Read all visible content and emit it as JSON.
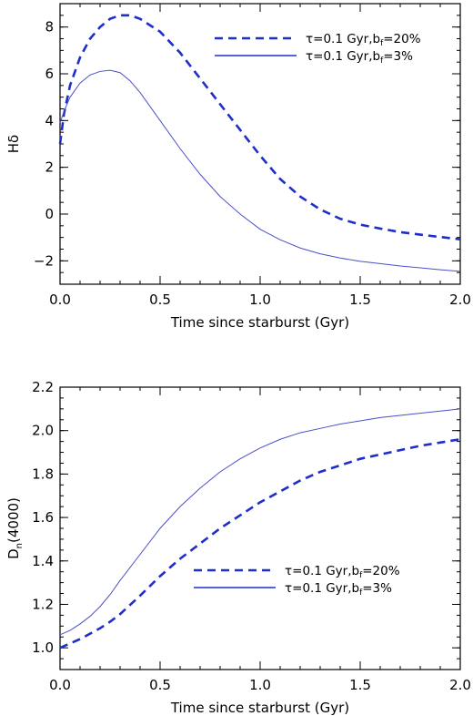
{
  "chart_data": [
    {
      "type": "line",
      "xlabel": "Time since starburst (Gyr)",
      "ylabel": "Hδ",
      "xlim": [
        0.0,
        2.0
      ],
      "ylim": [
        -3.0,
        9.0
      ],
      "xticks": [
        "0.0",
        "0.5",
        "1.0",
        "1.5",
        "2.0"
      ],
      "yticks": [
        "−2",
        "0",
        "2",
        "4",
        "6",
        "8"
      ],
      "ytick_values": [
        -2,
        0,
        2,
        4,
        6,
        8
      ],
      "xtick_values": [
        0.0,
        0.5,
        1.0,
        1.5,
        2.0
      ],
      "legend_position": "top-right",
      "series": [
        {
          "name": "τ=0.1 Gyr,bf=20%",
          "name_parts": [
            "τ=0.1 Gyr,b",
            "f",
            "=20%"
          ],
          "style": "dashed",
          "color": "#1f2ec8",
          "x": [
            0.0,
            0.02,
            0.05,
            0.1,
            0.15,
            0.2,
            0.25,
            0.3,
            0.35,
            0.4,
            0.5,
            0.6,
            0.7,
            0.8,
            0.9,
            1.0,
            1.1,
            1.2,
            1.3,
            1.4,
            1.5,
            1.6,
            1.7,
            1.8,
            1.9,
            2.0
          ],
          "y": [
            3.0,
            4.3,
            5.5,
            6.7,
            7.5,
            8.0,
            8.35,
            8.5,
            8.5,
            8.35,
            7.8,
            6.9,
            5.8,
            4.7,
            3.6,
            2.5,
            1.5,
            0.75,
            0.2,
            -0.2,
            -0.45,
            -0.62,
            -0.77,
            -0.88,
            -0.98,
            -1.08
          ]
        },
        {
          "name": "τ=0.1 Gyr,bf=3%",
          "name_parts": [
            "τ=0.1 Gyr,b",
            "f",
            "=3%"
          ],
          "style": "solid",
          "color": "#1f2ec8",
          "x": [
            0.0,
            0.02,
            0.05,
            0.1,
            0.15,
            0.2,
            0.25,
            0.3,
            0.35,
            0.4,
            0.5,
            0.6,
            0.7,
            0.8,
            0.9,
            1.0,
            1.1,
            1.2,
            1.3,
            1.4,
            1.5,
            1.6,
            1.7,
            1.8,
            1.9,
            2.0
          ],
          "y": [
            3.9,
            4.4,
            5.0,
            5.6,
            5.95,
            6.1,
            6.15,
            6.05,
            5.7,
            5.2,
            4.0,
            2.8,
            1.7,
            0.75,
            0.0,
            -0.65,
            -1.1,
            -1.45,
            -1.7,
            -1.88,
            -2.02,
            -2.12,
            -2.22,
            -2.3,
            -2.38,
            -2.45
          ]
        }
      ]
    },
    {
      "type": "line",
      "xlabel": "Time since starburst (Gyr)",
      "ylabel": "Dn(4000)",
      "ylabel_parts": [
        "D",
        "n",
        "(4000)"
      ],
      "xlim": [
        0.0,
        2.0
      ],
      "ylim": [
        0.9,
        2.2
      ],
      "xticks": [
        "0.0",
        "0.5",
        "1.0",
        "1.5",
        "2.0"
      ],
      "yticks": [
        "1.0",
        "1.2",
        "1.4",
        "1.6",
        "1.8",
        "2.0",
        "2.2"
      ],
      "ytick_values": [
        1.0,
        1.2,
        1.4,
        1.6,
        1.8,
        2.0,
        2.2
      ],
      "xtick_values": [
        0.0,
        0.5,
        1.0,
        1.5,
        2.0
      ],
      "legend_position": "bottom-right",
      "series": [
        {
          "name": "τ=0.1 Gyr,bf=20%",
          "name_parts": [
            "τ=0.1 Gyr,b",
            "f",
            "=20%"
          ],
          "style": "dashed",
          "color": "#1f2ec8",
          "x": [
            0.0,
            0.05,
            0.1,
            0.15,
            0.2,
            0.25,
            0.3,
            0.4,
            0.5,
            0.6,
            0.7,
            0.8,
            0.9,
            1.0,
            1.1,
            1.2,
            1.3,
            1.4,
            1.5,
            1.6,
            1.7,
            1.8,
            1.9,
            2.0
          ],
          "y": [
            1.0,
            1.02,
            1.04,
            1.065,
            1.09,
            1.12,
            1.155,
            1.24,
            1.33,
            1.41,
            1.48,
            1.55,
            1.61,
            1.67,
            1.72,
            1.77,
            1.81,
            1.84,
            1.87,
            1.89,
            1.91,
            1.93,
            1.945,
            1.96
          ]
        },
        {
          "name": "τ=0.1 Gyr,bf=3%",
          "name_parts": [
            "τ=0.1 Gyr,b",
            "f",
            "=3%"
          ],
          "style": "solid",
          "color": "#1f2ec8",
          "x": [
            0.0,
            0.05,
            0.1,
            0.15,
            0.2,
            0.25,
            0.3,
            0.4,
            0.5,
            0.6,
            0.7,
            0.8,
            0.9,
            1.0,
            1.1,
            1.2,
            1.3,
            1.4,
            1.5,
            1.6,
            1.7,
            1.8,
            1.9,
            2.0
          ],
          "y": [
            1.06,
            1.08,
            1.11,
            1.145,
            1.19,
            1.245,
            1.31,
            1.43,
            1.55,
            1.65,
            1.735,
            1.81,
            1.87,
            1.92,
            1.96,
            1.99,
            2.01,
            2.03,
            2.045,
            2.06,
            2.07,
            2.08,
            2.09,
            2.1
          ]
        }
      ]
    }
  ]
}
